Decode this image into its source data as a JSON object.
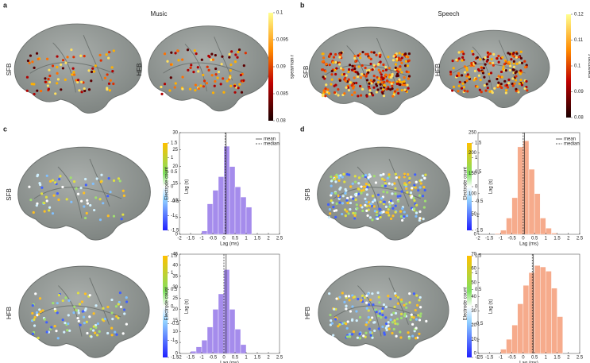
{
  "panels": [
    "a",
    "b",
    "c",
    "d"
  ],
  "titles": [
    "Music",
    "Speech"
  ],
  "rows": [
    "SFB",
    "HFB"
  ],
  "colorbars": [
    {
      "label": "spearman r",
      "lim": [
        0.08,
        0.1
      ],
      "ticks": [
        0.08,
        0.085,
        0.09,
        0.095,
        0.1
      ]
    },
    {
      "label": "spearman r",
      "lim": [
        0.08,
        0.12
      ],
      "ticks": [
        0.08,
        0.09,
        0.1,
        0.11,
        0.12
      ]
    },
    {
      "label": "Lag (s)",
      "lim": [
        -1.5,
        1.5
      ],
      "ticks": [
        -1.5,
        -1,
        -0.5,
        0,
        0.5,
        1,
        1.5
      ]
    }
  ],
  "chart_data": [
    {
      "type": "histogram",
      "color": "#a58cec",
      "bins": [
        -1,
        -0.75,
        -0.5,
        -0.25,
        0,
        0.25,
        0.5,
        0.75,
        1,
        1.25
      ],
      "counts": [
        1,
        9,
        13,
        17,
        26,
        20,
        14,
        11,
        8
      ],
      "mean": 0.1,
      "median": 0.05,
      "legend": [
        "mean",
        "median"
      ],
      "xlabel": "Lag (ms)",
      "ylabel": "Electrode count",
      "xlim": [
        -2,
        2.5
      ],
      "xticks": [
        -2,
        -1.5,
        -1,
        -0.5,
        0,
        0.5,
        1,
        1.5,
        2,
        2.5
      ],
      "ylim": [
        0,
        30
      ],
      "yticks": [
        0,
        5,
        10,
        15,
        20,
        25,
        30
      ]
    },
    {
      "type": "histogram",
      "color": "#a58cec",
      "bins": [
        -1.5,
        -1.25,
        -1,
        -0.75,
        -0.5,
        -0.25,
        0,
        0.25,
        0.5,
        0.75,
        1
      ],
      "counts": [
        1,
        3,
        6,
        12,
        20,
        27,
        38,
        20,
        11,
        4
      ],
      "mean": 0.1,
      "median": 0.0,
      "xlabel": "Lag (ms)",
      "ylabel": "Electrode count",
      "xlim": [
        -2,
        2.5
      ],
      "xticks": [
        -2,
        -1.5,
        -1,
        -0.5,
        0,
        0.5,
        1,
        1.5,
        2,
        2.5
      ],
      "ylim": [
        0,
        45
      ],
      "yticks": [
        0,
        5,
        10,
        15,
        20,
        25,
        30,
        35,
        40,
        45
      ]
    },
    {
      "type": "histogram",
      "color": "#f6ab8c",
      "bins": [
        -1.25,
        -1,
        -0.75,
        -0.5,
        -0.25,
        0,
        0.25,
        0.5,
        0.75,
        1,
        1.25,
        1.5
      ],
      "counts": [
        2,
        10,
        40,
        90,
        215,
        230,
        160,
        100,
        40,
        15,
        3
      ],
      "mean": 0.05,
      "median": 0.0,
      "legend": [
        "mean",
        "median"
      ],
      "xlabel": "Lag (ms)",
      "ylabel": "Electrode count",
      "xlim": [
        -2,
        2.5
      ],
      "xticks": [
        -2,
        -1.5,
        -1,
        -0.5,
        0,
        0.5,
        1,
        1.5,
        2,
        2.5
      ],
      "ylim": [
        0,
        250
      ],
      "yticks": [
        0,
        50,
        100,
        150,
        200,
        250
      ]
    },
    {
      "type": "histogram",
      "color": "#f6ab8c",
      "bins": [
        -1,
        -0.75,
        -0.5,
        -0.25,
        0,
        0.25,
        0.5,
        0.75,
        1,
        1.25,
        1.5,
        1.75
      ],
      "counts": [
        3,
        10,
        20,
        35,
        48,
        57,
        62,
        61,
        58,
        46,
        26
      ],
      "mean": 0.45,
      "median": 0.4,
      "xlabel": "Lag (ms)",
      "ylabel": "Electrode count",
      "xlim": [
        -2,
        2.5
      ],
      "xticks": [
        -2,
        -1.5,
        -1,
        -0.5,
        0,
        0.5,
        1,
        1.5,
        2,
        2.5
      ],
      "ylim": [
        0,
        70
      ],
      "yticks": [
        0,
        10,
        20,
        30,
        40,
        50,
        60,
        70
      ]
    }
  ]
}
